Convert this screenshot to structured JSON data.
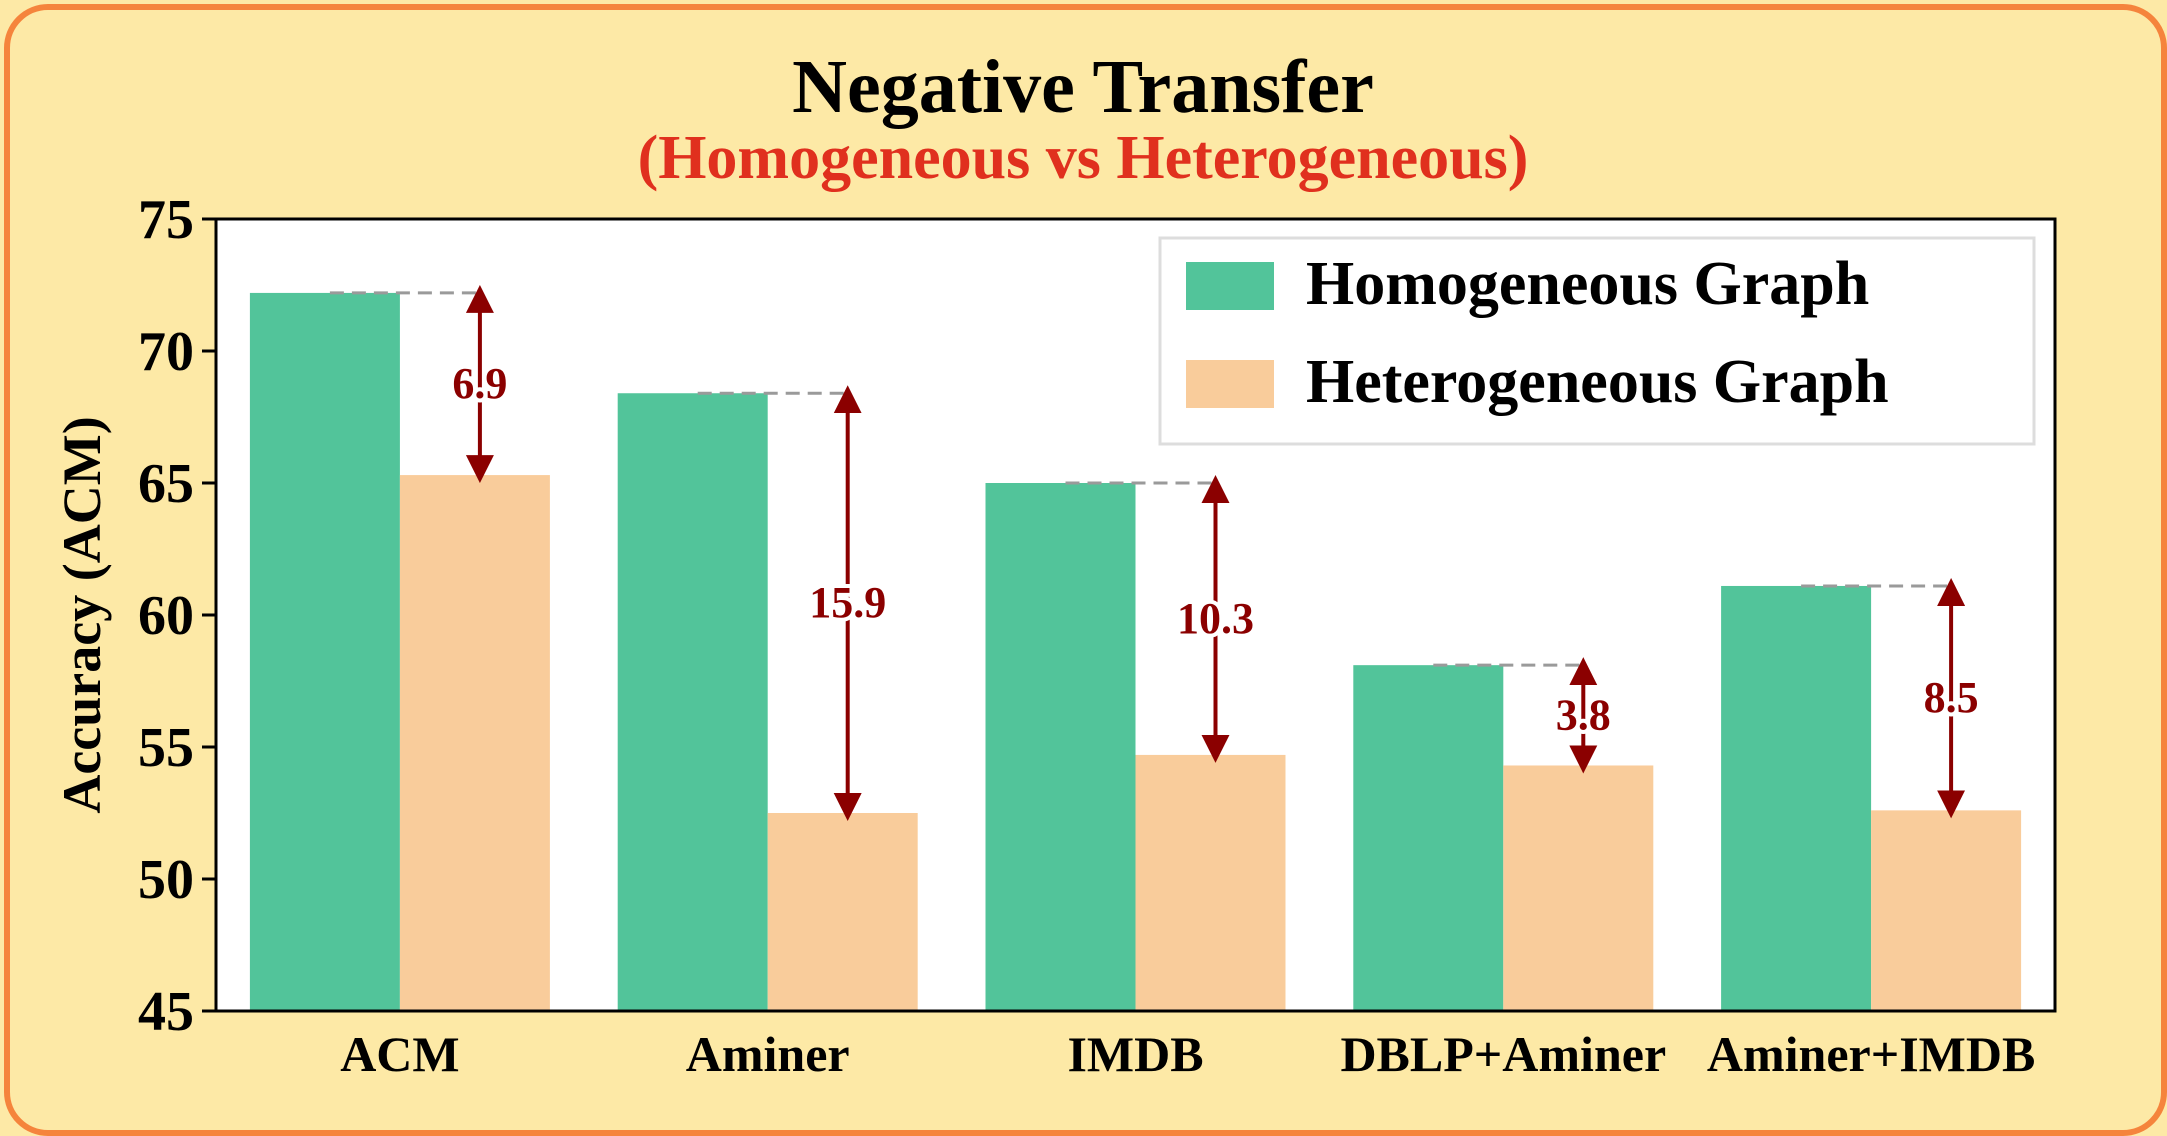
{
  "chart_data": {
    "type": "bar",
    "title": "Negative Transfer",
    "subtitle": "(Homogeneous vs Heterogeneous)",
    "xlabel": "",
    "ylabel": "Accuracy (ACM)",
    "ylim": [
      45,
      75
    ],
    "yticks": [
      45,
      50,
      55,
      60,
      65,
      70,
      75
    ],
    "grid": false,
    "legend_position": "top-right",
    "categories": [
      "ACM",
      "Aminer",
      "IMDB",
      "DBLP+Aminer",
      "Aminer+IMDB"
    ],
    "series": [
      {
        "name": "Homogeneous Graph",
        "color": "#52c49a",
        "values": [
          72.2,
          68.4,
          65.0,
          58.1,
          61.1
        ]
      },
      {
        "name": "Heterogeneous Graph",
        "color": "#f9cc9b",
        "values": [
          65.3,
          52.5,
          54.7,
          54.3,
          52.6
        ]
      }
    ],
    "annotations": [
      {
        "category": "ACM",
        "label": "6.9"
      },
      {
        "category": "Aminer",
        "label": "15.9"
      },
      {
        "category": "IMDB",
        "label": "10.3"
      },
      {
        "category": "DBLP+Aminer",
        "label": "3.8"
      },
      {
        "category": "Aminer+IMDB",
        "label": "8.5"
      }
    ],
    "colors": {
      "title": "#000000",
      "subtitle": "#e0301e",
      "annotation": "#8b0000",
      "dashed_line": "#9a9a9a",
      "frame_border": "#f5843c",
      "frame_background": "#fde9a6"
    }
  }
}
